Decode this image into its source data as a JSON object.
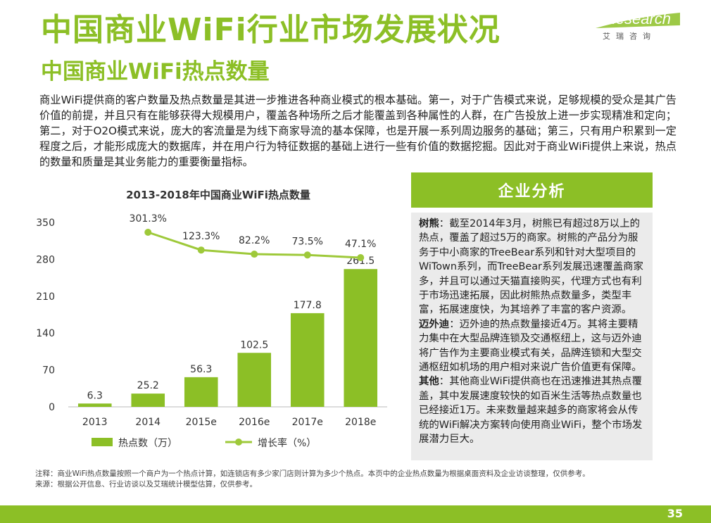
{
  "header": {
    "title": "中国商业WiFi行业市场发展状况",
    "subtitle": "中国商业WiFi热点数量"
  },
  "logo": {
    "word": "iResearch",
    "tagline": "艾瑞咨询"
  },
  "intro": "商业WiFi提供商的客户数量及热点数量是其进一步推进各种商业模式的根本基础。第一，对于广告模式来说，足够规模的受众是其广告价值的前提，并且只有在能够获得大规模用户，覆盖各种场所之后才能覆盖到各种属性的人群，在广告投放上进一步实现精准和定向；第二，对于O2O模式来说，庞大的客流量是为线下商家导流的基本保障，也是开展一系列周边服务的基础；第三，只有用户积累到一定程度之后，才能形成庞大的数据库，并在用户行为特征数据的基础上进行一些有价值的数据挖掘。因此对于商业WiFi提供上来说，热点的数量和质量是其业务能力的重要衡量指标。",
  "chart_data": {
    "type": "bar",
    "title": "2013-2018年中国商业WiFi热点数量",
    "categories": [
      "2013",
      "2014",
      "2015e",
      "2016e",
      "2017e",
      "2018e"
    ],
    "series": [
      {
        "name": "热点数（万）",
        "type": "bar",
        "values": [
          6.3,
          25.2,
          56.3,
          102.5,
          177.8,
          261.5
        ],
        "labels": [
          "6.3",
          "25.2",
          "56.3",
          "102.5",
          "177.8",
          "261.5"
        ]
      },
      {
        "name": "增长率（%）",
        "type": "line",
        "values": [
          null,
          301.3,
          123.3,
          82.2,
          73.5,
          47.1
        ],
        "labels": [
          "",
          "301.3%",
          "123.3%",
          "82.2%",
          "73.5%",
          "47.1%"
        ]
      }
    ],
    "yticks": [
      "0",
      "70",
      "140",
      "210",
      "280",
      "350"
    ],
    "ylim": [
      0,
      350
    ],
    "grid": false,
    "legend_position": "bottom",
    "colors": {
      "bar": "#8cbf26",
      "line": "#9ec93a",
      "text": "#333333"
    }
  },
  "panel": {
    "title": "企业分析",
    "paragraphs": [
      {
        "key": "树熊",
        "text": "：截至2014年3月，树熊已有超过8万以上的热点，覆盖了超过5万的商家。树熊的产品分为服务于中小商家的TreeBear系列和针对大型项目的WiTown系列，而TreeBear系列发展迅速覆盖商家多，并且可以通过天猫直接购买，代理方式也有利于市场迅速拓展，因此树熊热点数量多，类型丰富，拓展速度快，为其培养了丰富的客户资源。"
      },
      {
        "key": "迈外迪",
        "text": "：迈外迪的热点数量接近4万。其将主要精力集中在大型品牌连锁及交通枢纽上，这与迈外迪将广告作为主要商业模式有关，品牌连锁和大型交通枢纽如机场的用户相对来说广告价值更有保障。"
      },
      {
        "key": "其他",
        "text": "：其他商业WiFi提供商也在迅速推进其热点覆盖，其中发展速度较快的如百米生活等热点数量也已经接近1万。未来数量越来越多的商家将会从传统的WiFi解决方案转向使用商业WiFi，整个市场发展潜力巨大。"
      }
    ]
  },
  "footnote": {
    "line1": "注释：商业WiFi热点数量按照一个商户为一个热点计算，如连锁店有多少家门店则计算为多少个热点。本页中的企业热点数量为根据桌面资料及企业访谈整理，仅供参考。",
    "line2": "来源：根据公开信息、行业访谈以及艾瑞统计模型估算，仅供参考。"
  },
  "page_number": "35"
}
